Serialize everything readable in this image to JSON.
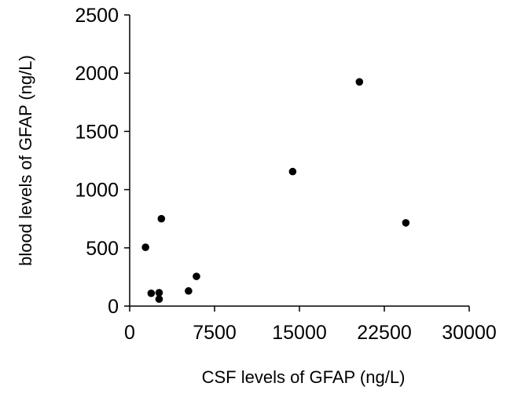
{
  "chart_data": {
    "type": "scatter",
    "xlabel": "CSF levels of GFAP (ng/L)",
    "ylabel": "blood levels of GFAP (ng/L)",
    "xlim": [
      0,
      30000
    ],
    "ylim": [
      0,
      2500
    ],
    "x_ticks": [
      "0",
      "7500",
      "15000",
      "22500",
      "30000"
    ],
    "y_ticks": [
      "0",
      "500",
      "1000",
      "1500",
      "2000",
      "2500"
    ],
    "grid": false,
    "series": [
      {
        "marker_color": "#000000",
        "points": [
          {
            "x": 1400,
            "y": 505
          },
          {
            "x": 1900,
            "y": 110
          },
          {
            "x": 2600,
            "y": 115
          },
          {
            "x": 2600,
            "y": 60
          },
          {
            "x": 2800,
            "y": 750
          },
          {
            "x": 5200,
            "y": 130
          },
          {
            "x": 5900,
            "y": 255
          },
          {
            "x": 14400,
            "y": 1155
          },
          {
            "x": 20300,
            "y": 1925
          },
          {
            "x": 24400,
            "y": 715
          }
        ]
      }
    ]
  }
}
